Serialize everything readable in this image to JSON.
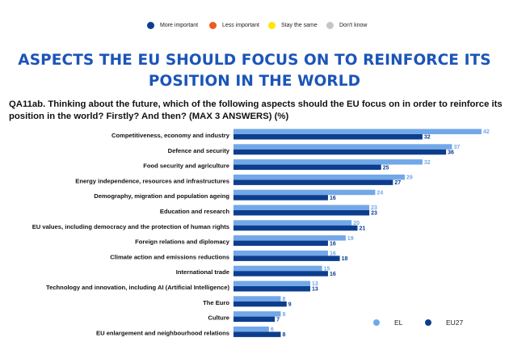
{
  "top_legend": [
    {
      "label": "More important",
      "color": "#0d3e8e"
    },
    {
      "label": "Less important",
      "color": "#f05a1a"
    },
    {
      "label": "Stay the same",
      "color": "#ffe500"
    },
    {
      "label": "Don't know",
      "color": "#c6c6c6"
    }
  ],
  "title": "ASPECTS THE EU SHOULD FOCUS ON TO REINFORCE ITS POSITION IN THE WORLD",
  "question": "QA11ab. Thinking about the future, which of the following aspects should the EU focus on in order to reinforce its position in the world? Firstly? And then? (MAX 3 ANSWERS) (%)",
  "chart_data": {
    "type": "bar",
    "orientation": "horizontal",
    "categories": [
      "Competitiveness, economy and industry",
      "Defence and security",
      "Food security and agriculture",
      "Energy independence, resources and infrastructures",
      "Demography, migration and population ageing",
      "Education and research",
      "EU values, including democracy and the protection of human rights",
      "Foreign relations and diplomacy",
      "Climate action and emissions reductions",
      "International trade",
      "Technology and innovation, including AI (Artificial Intelligence)",
      "The Euro",
      "Culture",
      "EU enlargement and neighbourhood relations"
    ],
    "series": [
      {
        "name": "EL",
        "color": "#72a8e8",
        "values": [
          42,
          37,
          32,
          29,
          24,
          23,
          20,
          19,
          16,
          15,
          13,
          8,
          8,
          6
        ]
      },
      {
        "name": "EU27",
        "color": "#0d3e8e",
        "values": [
          32,
          36,
          25,
          27,
          16,
          23,
          21,
          16,
          18,
          16,
          13,
          9,
          7,
          8
        ]
      }
    ],
    "xlim": [
      0,
      42
    ],
    "legend_position": "bottom-right",
    "grid": false
  }
}
